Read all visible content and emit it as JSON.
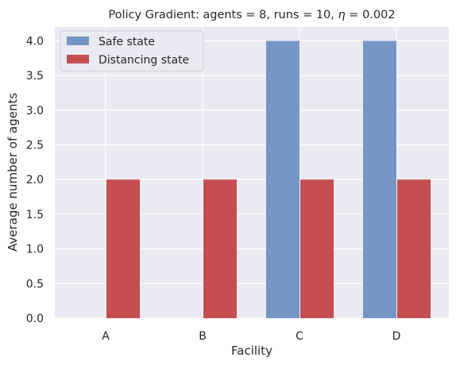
{
  "chart_data": {
    "type": "bar",
    "title_main": "Policy Gradient: agents = 8, runs = 10, ",
    "title_eta": "η",
    "title_tail": " = 0.002",
    "xlabel": "Facility",
    "ylabel": "Average number of agents",
    "categories": [
      "A",
      "B",
      "C",
      "D"
    ],
    "series": [
      {
        "name": "Safe state",
        "values": [
          0,
          0,
          4,
          4
        ],
        "color": "#7596c5"
      },
      {
        "name": "Distancing state",
        "values": [
          2,
          2,
          2,
          2
        ],
        "color": "#c44e52"
      }
    ],
    "yticks": [
      "0.0",
      "0.5",
      "1.0",
      "1.5",
      "2.0",
      "2.5",
      "3.0",
      "3.5",
      "4.0"
    ],
    "ylim": [
      0,
      4.2
    ],
    "grid": true,
    "legend_position": "top-left",
    "background": "#eaeaf2"
  }
}
